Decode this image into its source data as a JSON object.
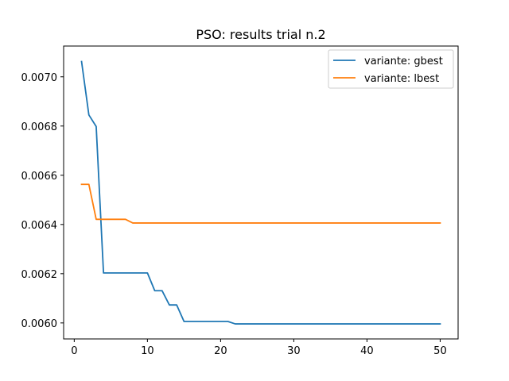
{
  "chart_data": {
    "type": "line",
    "title": "PSO: results trial n.2",
    "xlabel": "",
    "ylabel": "",
    "xlim": [
      -1.45,
      52.45
    ],
    "ylim": [
      0.005935,
      0.007125
    ],
    "x_ticks": [
      0,
      10,
      20,
      30,
      40,
      50
    ],
    "y_ticks": [
      0.006,
      0.0062,
      0.0064,
      0.0066,
      0.0068,
      0.007
    ],
    "y_tick_labels": [
      "0.0060",
      "0.0062",
      "0.0064",
      "0.0066",
      "0.0068",
      "0.0070"
    ],
    "x_tick_labels": [
      "0",
      "10",
      "20",
      "30",
      "40",
      "50"
    ],
    "grid": false,
    "legend_position": "top-right",
    "x": [
      1,
      2,
      3,
      4,
      5,
      6,
      7,
      8,
      9,
      10,
      11,
      12,
      13,
      14,
      15,
      16,
      17,
      18,
      19,
      20,
      21,
      22,
      23,
      24,
      25,
      26,
      27,
      28,
      29,
      30,
      31,
      32,
      33,
      34,
      35,
      36,
      37,
      38,
      39,
      40,
      41,
      42,
      43,
      44,
      45,
      46,
      47,
      48,
      49,
      50
    ],
    "series": [
      {
        "name": "variante: gbest",
        "color": "#1f77b4",
        "values": [
          0.007062,
          0.006845,
          0.006798,
          0.006203,
          0.006203,
          0.006203,
          0.006203,
          0.006203,
          0.006203,
          0.006203,
          0.006131,
          0.006131,
          0.006073,
          0.006073,
          0.006006,
          0.006006,
          0.006006,
          0.006006,
          0.006006,
          0.006006,
          0.006006,
          0.005996,
          0.005996,
          0.005996,
          0.005996,
          0.005996,
          0.005996,
          0.005996,
          0.005996,
          0.005996,
          0.005996,
          0.005996,
          0.005996,
          0.005996,
          0.005996,
          0.005996,
          0.005996,
          0.005996,
          0.005996,
          0.005996,
          0.005996,
          0.005996,
          0.005996,
          0.005996,
          0.005996,
          0.005996,
          0.005996,
          0.005996,
          0.005996,
          0.005996
        ]
      },
      {
        "name": "variante: lbest",
        "color": "#ff7f0e",
        "values": [
          0.006563,
          0.006563,
          0.006421,
          0.006421,
          0.006421,
          0.006421,
          0.006421,
          0.006406,
          0.006406,
          0.006406,
          0.006406,
          0.006406,
          0.006406,
          0.006406,
          0.006406,
          0.006406,
          0.006406,
          0.006406,
          0.006406,
          0.006406,
          0.006406,
          0.006406,
          0.006406,
          0.006406,
          0.006406,
          0.006406,
          0.006406,
          0.006406,
          0.006406,
          0.006406,
          0.006406,
          0.006406,
          0.006406,
          0.006406,
          0.006406,
          0.006406,
          0.006406,
          0.006406,
          0.006406,
          0.006406,
          0.006406,
          0.006406,
          0.006406,
          0.006406,
          0.006406,
          0.006406,
          0.006406,
          0.006406,
          0.006406,
          0.006406
        ]
      }
    ]
  }
}
